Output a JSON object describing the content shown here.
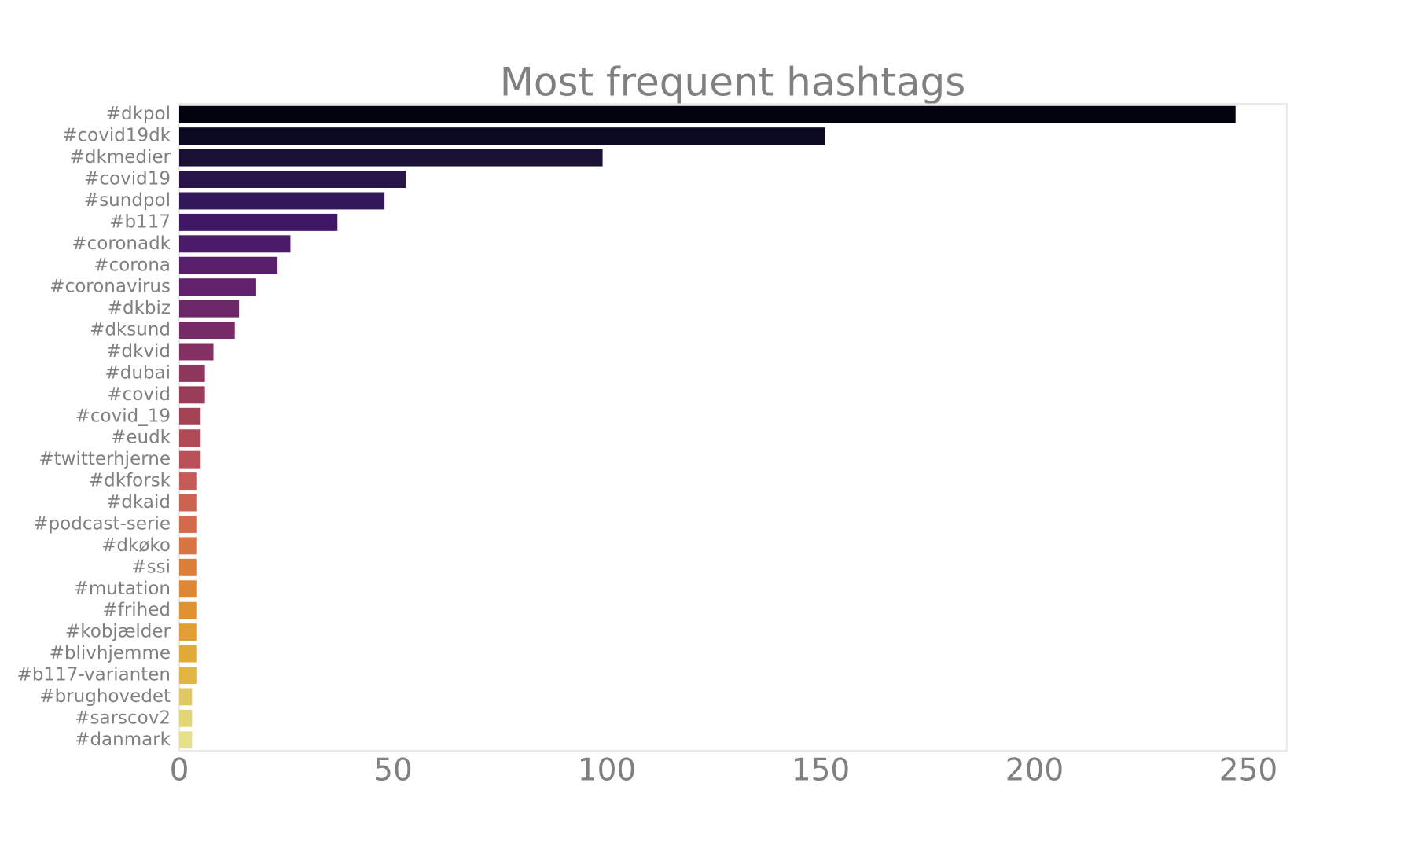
{
  "chart_data": {
    "type": "barh",
    "title": "Most frequent hashtags",
    "categories": [
      "#dkpol",
      "#covid19dk",
      "#dkmedier",
      "#covid19",
      "#sundpol",
      "#b117",
      "#coronadk",
      "#corona",
      "#coronavirus",
      "#dkbiz",
      "#dksund",
      "#dkvid",
      "#dubai",
      "#covid",
      "#covid_19",
      "#eudk",
      "#twitterhjerne",
      "#dkforsk",
      "#dkaid",
      "#podcast-serie",
      "#dkøko",
      "#ssi",
      "#mutation",
      "#frihed",
      "#kobjælder",
      "#blivhjemme",
      "#b117-varianten",
      "#brughovedet",
      "#sarscov2",
      "#danmark"
    ],
    "values": [
      247,
      151,
      99,
      53,
      48,
      37,
      26,
      23,
      18,
      14,
      13,
      8,
      6,
      6,
      5,
      5,
      5,
      4,
      4,
      4,
      4,
      4,
      4,
      4,
      4,
      4,
      4,
      3,
      3,
      3
    ],
    "colors": [
      "#03030f",
      "#0b0a22",
      "#1a1235",
      "#271647",
      "#321858",
      "#3f1764",
      "#4b1a69",
      "#561e6b",
      "#62216c",
      "#6c2769",
      "#762b66",
      "#843063",
      "#8f375d",
      "#9a3d58",
      "#a44256",
      "#b04a56",
      "#bb5158",
      "#c65a56",
      "#cc6250",
      "#d46a4a",
      "#d97543",
      "#dc7e3a",
      "#df8733",
      "#e0922f",
      "#e29e30",
      "#e2aa38",
      "#e2b440",
      "#e1c961",
      "#e2d574",
      "#e4e18a"
    ],
    "xlim": [
      0,
      259
    ],
    "xticks": [
      0,
      50,
      100,
      150,
      200,
      250
    ],
    "grid": false
  }
}
